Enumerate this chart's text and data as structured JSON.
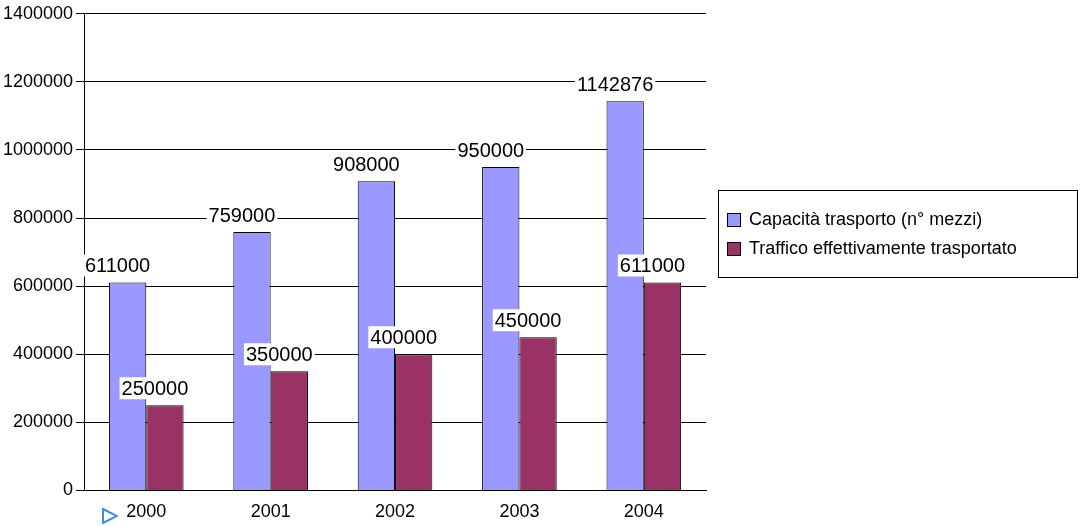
{
  "chart_data": {
    "type": "bar",
    "categories": [
      "2000",
      "2001",
      "2002",
      "2003",
      "2004"
    ],
    "series": [
      {
        "name": "Capacità trasporto (n° mezzi)",
        "color": "#9999ff",
        "values": [
          611000,
          759000,
          908000,
          950000,
          1142876
        ]
      },
      {
        "name": "Traffico effettivamente trasportato",
        "color": "#993366",
        "values": [
          250000,
          350000,
          400000,
          450000,
          611000
        ]
      }
    ],
    "ylim": [
      0,
      1400000
    ],
    "yticks": [
      0,
      200000,
      400000,
      600000,
      800000,
      1000000,
      1200000,
      1400000
    ],
    "grid": "y",
    "legend": "right",
    "data_labels": true
  }
}
